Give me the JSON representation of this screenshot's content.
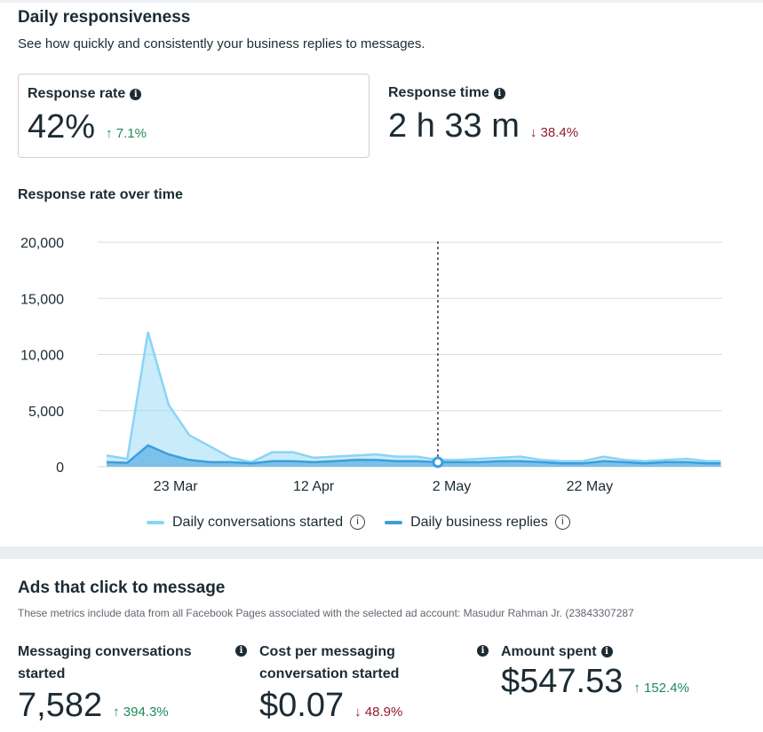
{
  "responsiveness": {
    "title": "Daily responsiveness",
    "subtitle": "See how quickly and consistently your business replies to messages.",
    "response_rate": {
      "label": "Response rate",
      "value": "42%",
      "change": "7.1%",
      "direction": "up"
    },
    "response_time": {
      "label": "Response time",
      "value": "2 h 33 m",
      "change": "38.4%",
      "direction": "down"
    },
    "chart_title": "Response rate over time"
  },
  "chart_data": {
    "type": "area",
    "title": "Response rate over time",
    "ylim": [
      0,
      20000
    ],
    "yticks": [
      "20,000",
      "15,000",
      "10,000",
      "5,000",
      "0"
    ],
    "xticks": [
      "23 Mar",
      "12 Apr",
      "2 May",
      "22 May"
    ],
    "grid": true,
    "legend_position": "bottom",
    "hover_marker": "30 Apr",
    "x": [
      "13 Mar",
      "16 Mar",
      "19 Mar",
      "22 Mar",
      "25 Mar",
      "28 Mar",
      "31 Mar",
      "3 Apr",
      "6 Apr",
      "9 Apr",
      "12 Apr",
      "15 Apr",
      "18 Apr",
      "21 Apr",
      "24 Apr",
      "27 Apr",
      "30 Apr",
      "3 May",
      "6 May",
      "9 May",
      "12 May",
      "15 May",
      "18 May",
      "21 May",
      "24 May",
      "27 May",
      "30 May",
      "2 Jun",
      "5 Jun",
      "8 Jun",
      "10 Jun"
    ],
    "series": [
      {
        "name": "Daily conversations started",
        "color": "#8ad4f5",
        "values": [
          1000,
          700,
          12000,
          5500,
          2800,
          1800,
          800,
          400,
          1300,
          1300,
          800,
          900,
          1000,
          1100,
          900,
          900,
          600,
          600,
          700,
          800,
          900,
          600,
          500,
          500,
          900,
          600,
          500,
          600,
          700,
          500,
          500
        ]
      },
      {
        "name": "Daily business replies",
        "color": "#3b9fdd",
        "values": [
          400,
          350,
          1900,
          1100,
          600,
          400,
          400,
          300,
          500,
          500,
          400,
          500,
          600,
          600,
          500,
          500,
          400,
          400,
          400,
          500,
          500,
          400,
          300,
          300,
          500,
          400,
          300,
          400,
          400,
          300,
          300
        ]
      }
    ]
  },
  "ads": {
    "title": "Ads that click to message",
    "note": "These metrics include data from all Facebook Pages associated with the selected ad account: Masudur Rahman Jr. (23843307287",
    "metrics": [
      {
        "label": "Messaging conversations started",
        "value": "7,582",
        "change": "394.3%",
        "direction": "up"
      },
      {
        "label": "Cost per messaging conversation started",
        "value": "$0.07",
        "change": "48.9%",
        "direction": "down"
      },
      {
        "label": "Amount spent",
        "value": "$547.53",
        "change": "152.4%",
        "direction": "up"
      }
    ]
  },
  "colors": {
    "up": "#1e8a5a",
    "down": "#8f1d2c"
  }
}
